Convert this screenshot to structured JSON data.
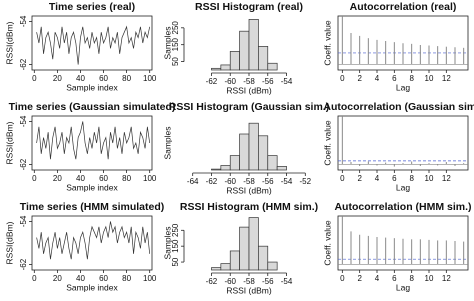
{
  "chart_data": [
    {
      "type": "line",
      "title": "Time series (real)",
      "x_label": "Sample index",
      "y_label": "RSSI(dBm)",
      "color": "#333333",
      "box": true,
      "x": [
        2,
        4,
        6,
        8,
        10,
        12,
        14,
        16,
        18,
        20,
        22,
        24,
        26,
        28,
        30,
        32,
        34,
        36,
        38,
        40,
        42,
        44,
        46,
        48,
        50,
        52,
        54,
        56,
        58,
        60,
        62,
        64,
        66,
        68,
        70,
        72,
        74,
        76,
        78,
        80,
        82,
        84,
        86,
        88,
        90,
        92,
        94,
        96,
        98,
        100
      ],
      "values": [
        -56,
        -58,
        -55,
        -60,
        -57,
        -56,
        -58,
        -61,
        -56,
        -57,
        -59,
        -55,
        -58,
        -56,
        -60,
        -57,
        -56,
        -58,
        -62,
        -57,
        -55,
        -58,
        -57,
        -59,
        -56,
        -58,
        -57,
        -60,
        -56,
        -58,
        -57,
        -55,
        -59,
        -57,
        -58,
        -56,
        -60,
        -57,
        -56,
        -55,
        -58,
        -57,
        -59,
        -56,
        -57,
        -55,
        -58,
        -56,
        -57,
        -55
      ],
      "xlim": [
        -2,
        102
      ],
      "ylim": [
        -63,
        -53
      ],
      "xticks": [
        0,
        20,
        40,
        60,
        80,
        100
      ],
      "yticks": [
        -62,
        -54
      ]
    },
    {
      "type": "histogram",
      "title": "RSSI Histogram (real)",
      "x_label": "RSSI (dBm)",
      "y_label": "Samples",
      "color": "#d9d9d9",
      "bins": [
        -62,
        -61,
        -60,
        -59,
        -58,
        -57,
        -56,
        -55
      ],
      "counts": [
        10,
        30,
        110,
        230,
        300,
        140,
        40
      ],
      "xlim": [
        -64.5,
        -51.5
      ],
      "ylim": [
        0,
        320
      ],
      "xticks": [
        -62,
        -60,
        -58,
        -56,
        -54
      ],
      "yticks": [
        50,
        150,
        250
      ]
    },
    {
      "type": "stem",
      "title": "Autocorrelation (real)",
      "x_label": "Lag",
      "y_label": "Coeff. value",
      "color": "#888888",
      "ci_color": "#4a5fd0",
      "box": true,
      "x": [
        0,
        1,
        2,
        3,
        4,
        5,
        6,
        7,
        8,
        9,
        10,
        11,
        12,
        13,
        14
      ],
      "values": [
        1,
        0.55,
        0.5,
        0.46,
        0.43,
        0.41,
        0.39,
        0.37,
        0.36,
        0.34,
        0.33,
        0.32,
        0.31,
        0.3,
        0.29
      ],
      "ci": 0.2,
      "xlim": [
        -0.5,
        14.5
      ],
      "ylim": [
        -0.1,
        0.85
      ],
      "xticks": [
        0,
        2,
        4,
        6,
        8,
        10,
        12
      ]
    },
    {
      "type": "line",
      "title": "Time series (Gaussian simulated)",
      "x_label": "Sample index",
      "y_label": "RSSI(dBm)",
      "color": "#333333",
      "box": true,
      "x": [
        2,
        4,
        6,
        8,
        10,
        12,
        14,
        16,
        18,
        20,
        22,
        24,
        26,
        28,
        30,
        32,
        34,
        36,
        38,
        40,
        42,
        44,
        46,
        48,
        50,
        52,
        54,
        56,
        58,
        60,
        62,
        64,
        66,
        68,
        70,
        72,
        74,
        76,
        78,
        80,
        82,
        84,
        86,
        88,
        90,
        92,
        94,
        96,
        98,
        100
      ],
      "values": [
        -58,
        -55,
        -60,
        -57,
        -59,
        -56,
        -61,
        -57,
        -55,
        -59,
        -58,
        -56,
        -60,
        -57,
        -58,
        -55,
        -59,
        -61,
        -57,
        -56,
        -54,
        -58,
        -60,
        -57,
        -59,
        -56,
        -58,
        -55,
        -60,
        -58,
        -57,
        -61,
        -56,
        -58,
        -55,
        -59,
        -57,
        -60,
        -56,
        -58,
        -57,
        -55,
        -59,
        -58,
        -60,
        -56,
        -57,
        -59,
        -55,
        -58
      ],
      "xlim": [
        -2,
        102
      ],
      "ylim": [
        -63,
        -53
      ],
      "xticks": [
        0,
        20,
        40,
        60,
        80,
        100
      ],
      "yticks": [
        -62,
        -54
      ]
    },
    {
      "type": "histogram",
      "title": "RSSI Histogram (Gaussian sim.)",
      "x_label": "RSSI (dBm)",
      "y_label": "Samples",
      "color": "#d9d9d9",
      "bins": [
        -62,
        -61,
        -60,
        -59,
        -58,
        -57,
        -56,
        -55,
        -54
      ],
      "counts": [
        5,
        25,
        80,
        200,
        260,
        190,
        80,
        20
      ],
      "xlim": [
        -64.5,
        -51.5
      ],
      "ylim": [
        0,
        300
      ],
      "xticks": [
        -64,
        -62,
        -60,
        -58,
        -56,
        -54,
        -52
      ]
    },
    {
      "type": "stem",
      "title": "Autocorrelation (Gaussian sim.)",
      "x_label": "Lag",
      "y_label": "Coeff. value",
      "color": "#888888",
      "ci_color": "#4a5fd0",
      "box": true,
      "x": [
        0,
        1,
        2,
        3,
        4,
        5,
        6,
        7,
        8,
        9,
        10,
        11,
        12,
        13,
        14
      ],
      "values": [
        1,
        0.04,
        -0.03,
        0.05,
        -0.02,
        0.03,
        -0.04,
        0.02,
        0.05,
        -0.03,
        0.02,
        -0.02,
        0.04,
        -0.03,
        0.02
      ],
      "ci": 0.06,
      "xlim": [
        -0.5,
        14.5
      ],
      "ylim": [
        -0.1,
        0.85
      ],
      "xticks": [
        0,
        2,
        4,
        6,
        8,
        10,
        12
      ]
    },
    {
      "type": "line",
      "title": "Time series (HMM simulated)",
      "x_label": "Sample index",
      "y_label": "RSSI(dBm)",
      "color": "#333333",
      "box": true,
      "x": [
        2,
        4,
        6,
        8,
        10,
        12,
        14,
        16,
        18,
        20,
        22,
        24,
        26,
        28,
        30,
        32,
        34,
        36,
        38,
        40,
        42,
        44,
        46,
        48,
        50,
        52,
        54,
        56,
        58,
        60,
        62,
        64,
        66,
        68,
        70,
        72,
        74,
        76,
        78,
        80,
        82,
        84,
        86,
        88,
        90,
        92,
        94,
        96,
        98,
        100
      ],
      "values": [
        -57,
        -59,
        -56,
        -60,
        -58,
        -57,
        -61,
        -58,
        -56,
        -59,
        -57,
        -60,
        -58,
        -56,
        -59,
        -61,
        -57,
        -58,
        -60,
        -57,
        -56,
        -58,
        -61,
        -57,
        -55,
        -56,
        -57,
        -55,
        -58,
        -56,
        -55,
        -57,
        -54,
        -56,
        -55,
        -58,
        -56,
        -55,
        -57,
        -56,
        -58,
        -55,
        -60,
        -56,
        -57,
        -59,
        -55,
        -58,
        -56,
        -60
      ],
      "xlim": [
        -2,
        102
      ],
      "ylim": [
        -63,
        -53
      ],
      "xticks": [
        0,
        20,
        40,
        60,
        80,
        100
      ],
      "yticks": [
        -62,
        -54
      ]
    },
    {
      "type": "histogram",
      "title": "RSSI Histogram (HMM sim.)",
      "x_label": "RSSI (dBm)",
      "y_label": "Samples",
      "color": "#d9d9d9",
      "bins": [
        -62,
        -61,
        -60,
        -59,
        -58,
        -57,
        -56,
        -55
      ],
      "counts": [
        15,
        40,
        120,
        270,
        330,
        150,
        50
      ],
      "xlim": [
        -64.5,
        -51.5
      ],
      "ylim": [
        0,
        340
      ],
      "xticks": [
        -62,
        -60,
        -58,
        -56,
        -54
      ],
      "yticks": [
        50,
        150,
        250
      ]
    },
    {
      "type": "stem",
      "title": "Autocorrelation (HMM sim.)",
      "x_label": "Lag",
      "y_label": "Coeff. value",
      "color": "#888888",
      "ci_color": "#4a5fd0",
      "box": true,
      "x": [
        0,
        1,
        2,
        3,
        4,
        5,
        6,
        7,
        8,
        9,
        10,
        11,
        12,
        13,
        14
      ],
      "values": [
        1,
        0.58,
        0.52,
        0.5,
        0.48,
        0.47,
        0.46,
        0.45,
        0.44,
        0.44,
        0.43,
        0.42,
        0.42,
        0.41,
        0.4
      ],
      "ci": 0.09,
      "xlim": [
        -0.5,
        14.5
      ],
      "ylim": [
        -0.1,
        0.85
      ],
      "xticks": [
        0,
        2,
        4,
        6,
        8,
        10,
        12
      ]
    }
  ]
}
